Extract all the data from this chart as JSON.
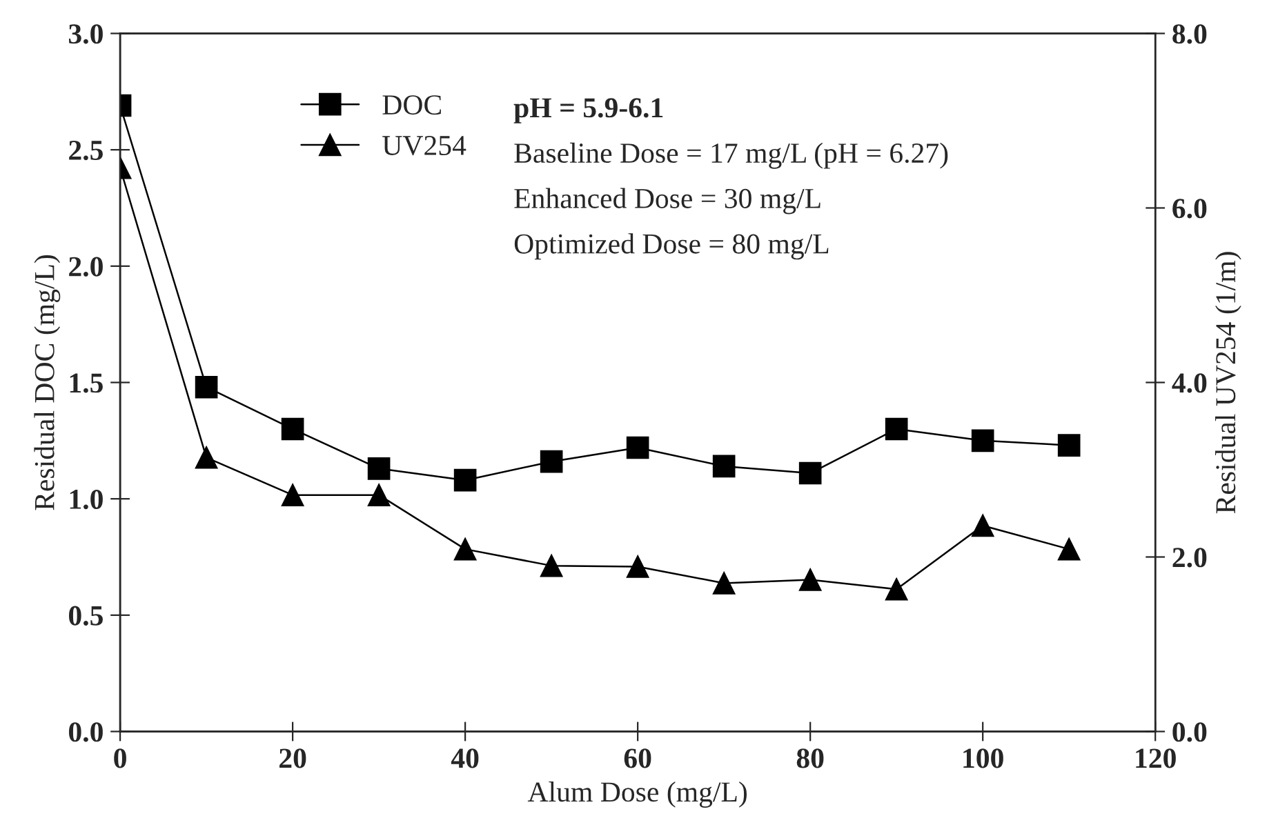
{
  "chart_data": {
    "type": "line",
    "xlabel": "Alum Dose (mg/L)",
    "ylabel": "Residual DOC (mg/L)",
    "y2label": "Residual UV254 (1/m)",
    "x": [
      0,
      10,
      20,
      30,
      40,
      50,
      60,
      70,
      80,
      90,
      100,
      110
    ],
    "series": [
      {
        "name": "DOC",
        "color": "#000000",
        "marker": "square",
        "values": [
          2.69,
          1.48,
          1.3,
          1.13,
          1.08,
          1.16,
          1.22,
          1.14,
          1.11,
          1.3,
          1.25,
          1.23
        ]
      },
      {
        "name": "UV254",
        "color": "#000000",
        "marker": "triangle",
        "axis": "y2",
        "values": [
          6.46,
          3.14,
          2.71,
          2.71,
          2.09,
          1.9,
          1.89,
          1.7,
          1.74,
          1.63,
          2.36,
          2.09
        ]
      }
    ],
    "xlim": [
      0,
      120
    ],
    "xticks": [
      0,
      20,
      40,
      60,
      80,
      100,
      120
    ],
    "ylim": [
      0,
      3
    ],
    "yticks": [
      {
        "value": 0,
        "label": "0.0"
      },
      {
        "value": 0.5,
        "label": "0.5"
      },
      {
        "value": 1,
        "label": "1.0"
      },
      {
        "value": 1.5,
        "label": "1.5"
      },
      {
        "value": 2,
        "label": "2.0"
      },
      {
        "value": 2.5,
        "label": "2.5"
      },
      {
        "value": 3,
        "label": "3.0"
      }
    ],
    "y2lim": [
      0,
      8
    ],
    "y2ticks": [
      {
        "value": 0,
        "label": "0.0"
      },
      {
        "value": 2,
        "label": "2.0"
      },
      {
        "value": 4,
        "label": "4.0"
      },
      {
        "value": 6,
        "label": "6.0"
      },
      {
        "value": 8,
        "label": "8.0"
      }
    ],
    "annotations": [
      "pH = 5.9-6.1",
      "Baseline Dose = 17 mg/L (pH = 6.27)",
      "Enhanced Dose = 30 mg/L",
      "Optimized Dose = 80 mg/L"
    ],
    "legend": "top left",
    "grid": false,
    "line_style": "solid"
  }
}
